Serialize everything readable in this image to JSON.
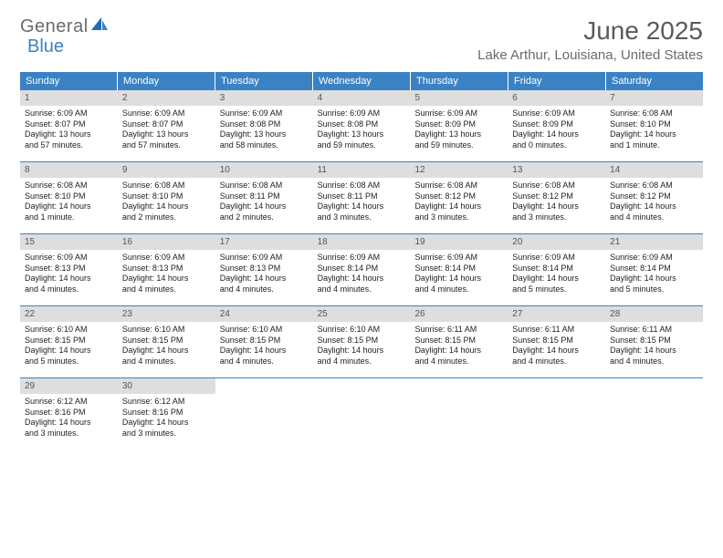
{
  "logo": {
    "text1": "General",
    "text2": "Blue"
  },
  "title": "June 2025",
  "location": "Lake Arthur, Louisiana, United States",
  "colors": {
    "header_bg": "#3b82c4",
    "header_text": "#ffffff",
    "daynum_bg": "#dedede",
    "daynum_text": "#555555",
    "body_text": "#222222",
    "page_bg": "#ffffff",
    "divider": "#3b82c4",
    "logo_gray": "#6b6b6b",
    "logo_blue": "#3b82c4",
    "title_color": "#5a5a5a"
  },
  "typography": {
    "title_fontsize": 28,
    "location_fontsize": 15,
    "dayhead_fontsize": 11,
    "daynum_fontsize": 10,
    "body_fontsize": 9
  },
  "day_headers": [
    "Sunday",
    "Monday",
    "Tuesday",
    "Wednesday",
    "Thursday",
    "Friday",
    "Saturday"
  ],
  "weeks": [
    [
      {
        "n": "1",
        "sunrise": "Sunrise: 6:09 AM",
        "sunset": "Sunset: 8:07 PM",
        "day1": "Daylight: 13 hours",
        "day2": "and 57 minutes."
      },
      {
        "n": "2",
        "sunrise": "Sunrise: 6:09 AM",
        "sunset": "Sunset: 8:07 PM",
        "day1": "Daylight: 13 hours",
        "day2": "and 57 minutes."
      },
      {
        "n": "3",
        "sunrise": "Sunrise: 6:09 AM",
        "sunset": "Sunset: 8:08 PM",
        "day1": "Daylight: 13 hours",
        "day2": "and 58 minutes."
      },
      {
        "n": "4",
        "sunrise": "Sunrise: 6:09 AM",
        "sunset": "Sunset: 8:08 PM",
        "day1": "Daylight: 13 hours",
        "day2": "and 59 minutes."
      },
      {
        "n": "5",
        "sunrise": "Sunrise: 6:09 AM",
        "sunset": "Sunset: 8:09 PM",
        "day1": "Daylight: 13 hours",
        "day2": "and 59 minutes."
      },
      {
        "n": "6",
        "sunrise": "Sunrise: 6:09 AM",
        "sunset": "Sunset: 8:09 PM",
        "day1": "Daylight: 14 hours",
        "day2": "and 0 minutes."
      },
      {
        "n": "7",
        "sunrise": "Sunrise: 6:08 AM",
        "sunset": "Sunset: 8:10 PM",
        "day1": "Daylight: 14 hours",
        "day2": "and 1 minute."
      }
    ],
    [
      {
        "n": "8",
        "sunrise": "Sunrise: 6:08 AM",
        "sunset": "Sunset: 8:10 PM",
        "day1": "Daylight: 14 hours",
        "day2": "and 1 minute."
      },
      {
        "n": "9",
        "sunrise": "Sunrise: 6:08 AM",
        "sunset": "Sunset: 8:10 PM",
        "day1": "Daylight: 14 hours",
        "day2": "and 2 minutes."
      },
      {
        "n": "10",
        "sunrise": "Sunrise: 6:08 AM",
        "sunset": "Sunset: 8:11 PM",
        "day1": "Daylight: 14 hours",
        "day2": "and 2 minutes."
      },
      {
        "n": "11",
        "sunrise": "Sunrise: 6:08 AM",
        "sunset": "Sunset: 8:11 PM",
        "day1": "Daylight: 14 hours",
        "day2": "and 3 minutes."
      },
      {
        "n": "12",
        "sunrise": "Sunrise: 6:08 AM",
        "sunset": "Sunset: 8:12 PM",
        "day1": "Daylight: 14 hours",
        "day2": "and 3 minutes."
      },
      {
        "n": "13",
        "sunrise": "Sunrise: 6:08 AM",
        "sunset": "Sunset: 8:12 PM",
        "day1": "Daylight: 14 hours",
        "day2": "and 3 minutes."
      },
      {
        "n": "14",
        "sunrise": "Sunrise: 6:08 AM",
        "sunset": "Sunset: 8:12 PM",
        "day1": "Daylight: 14 hours",
        "day2": "and 4 minutes."
      }
    ],
    [
      {
        "n": "15",
        "sunrise": "Sunrise: 6:09 AM",
        "sunset": "Sunset: 8:13 PM",
        "day1": "Daylight: 14 hours",
        "day2": "and 4 minutes."
      },
      {
        "n": "16",
        "sunrise": "Sunrise: 6:09 AM",
        "sunset": "Sunset: 8:13 PM",
        "day1": "Daylight: 14 hours",
        "day2": "and 4 minutes."
      },
      {
        "n": "17",
        "sunrise": "Sunrise: 6:09 AM",
        "sunset": "Sunset: 8:13 PM",
        "day1": "Daylight: 14 hours",
        "day2": "and 4 minutes."
      },
      {
        "n": "18",
        "sunrise": "Sunrise: 6:09 AM",
        "sunset": "Sunset: 8:14 PM",
        "day1": "Daylight: 14 hours",
        "day2": "and 4 minutes."
      },
      {
        "n": "19",
        "sunrise": "Sunrise: 6:09 AM",
        "sunset": "Sunset: 8:14 PM",
        "day1": "Daylight: 14 hours",
        "day2": "and 4 minutes."
      },
      {
        "n": "20",
        "sunrise": "Sunrise: 6:09 AM",
        "sunset": "Sunset: 8:14 PM",
        "day1": "Daylight: 14 hours",
        "day2": "and 5 minutes."
      },
      {
        "n": "21",
        "sunrise": "Sunrise: 6:09 AM",
        "sunset": "Sunset: 8:14 PM",
        "day1": "Daylight: 14 hours",
        "day2": "and 5 minutes."
      }
    ],
    [
      {
        "n": "22",
        "sunrise": "Sunrise: 6:10 AM",
        "sunset": "Sunset: 8:15 PM",
        "day1": "Daylight: 14 hours",
        "day2": "and 5 minutes."
      },
      {
        "n": "23",
        "sunrise": "Sunrise: 6:10 AM",
        "sunset": "Sunset: 8:15 PM",
        "day1": "Daylight: 14 hours",
        "day2": "and 4 minutes."
      },
      {
        "n": "24",
        "sunrise": "Sunrise: 6:10 AM",
        "sunset": "Sunset: 8:15 PM",
        "day1": "Daylight: 14 hours",
        "day2": "and 4 minutes."
      },
      {
        "n": "25",
        "sunrise": "Sunrise: 6:10 AM",
        "sunset": "Sunset: 8:15 PM",
        "day1": "Daylight: 14 hours",
        "day2": "and 4 minutes."
      },
      {
        "n": "26",
        "sunrise": "Sunrise: 6:11 AM",
        "sunset": "Sunset: 8:15 PM",
        "day1": "Daylight: 14 hours",
        "day2": "and 4 minutes."
      },
      {
        "n": "27",
        "sunrise": "Sunrise: 6:11 AM",
        "sunset": "Sunset: 8:15 PM",
        "day1": "Daylight: 14 hours",
        "day2": "and 4 minutes."
      },
      {
        "n": "28",
        "sunrise": "Sunrise: 6:11 AM",
        "sunset": "Sunset: 8:15 PM",
        "day1": "Daylight: 14 hours",
        "day2": "and 4 minutes."
      }
    ],
    [
      {
        "n": "29",
        "sunrise": "Sunrise: 6:12 AM",
        "sunset": "Sunset: 8:16 PM",
        "day1": "Daylight: 14 hours",
        "day2": "and 3 minutes."
      },
      {
        "n": "30",
        "sunrise": "Sunrise: 6:12 AM",
        "sunset": "Sunset: 8:16 PM",
        "day1": "Daylight: 14 hours",
        "day2": "and 3 minutes."
      },
      {
        "empty": true
      },
      {
        "empty": true
      },
      {
        "empty": true
      },
      {
        "empty": true
      },
      {
        "empty": true
      }
    ]
  ]
}
